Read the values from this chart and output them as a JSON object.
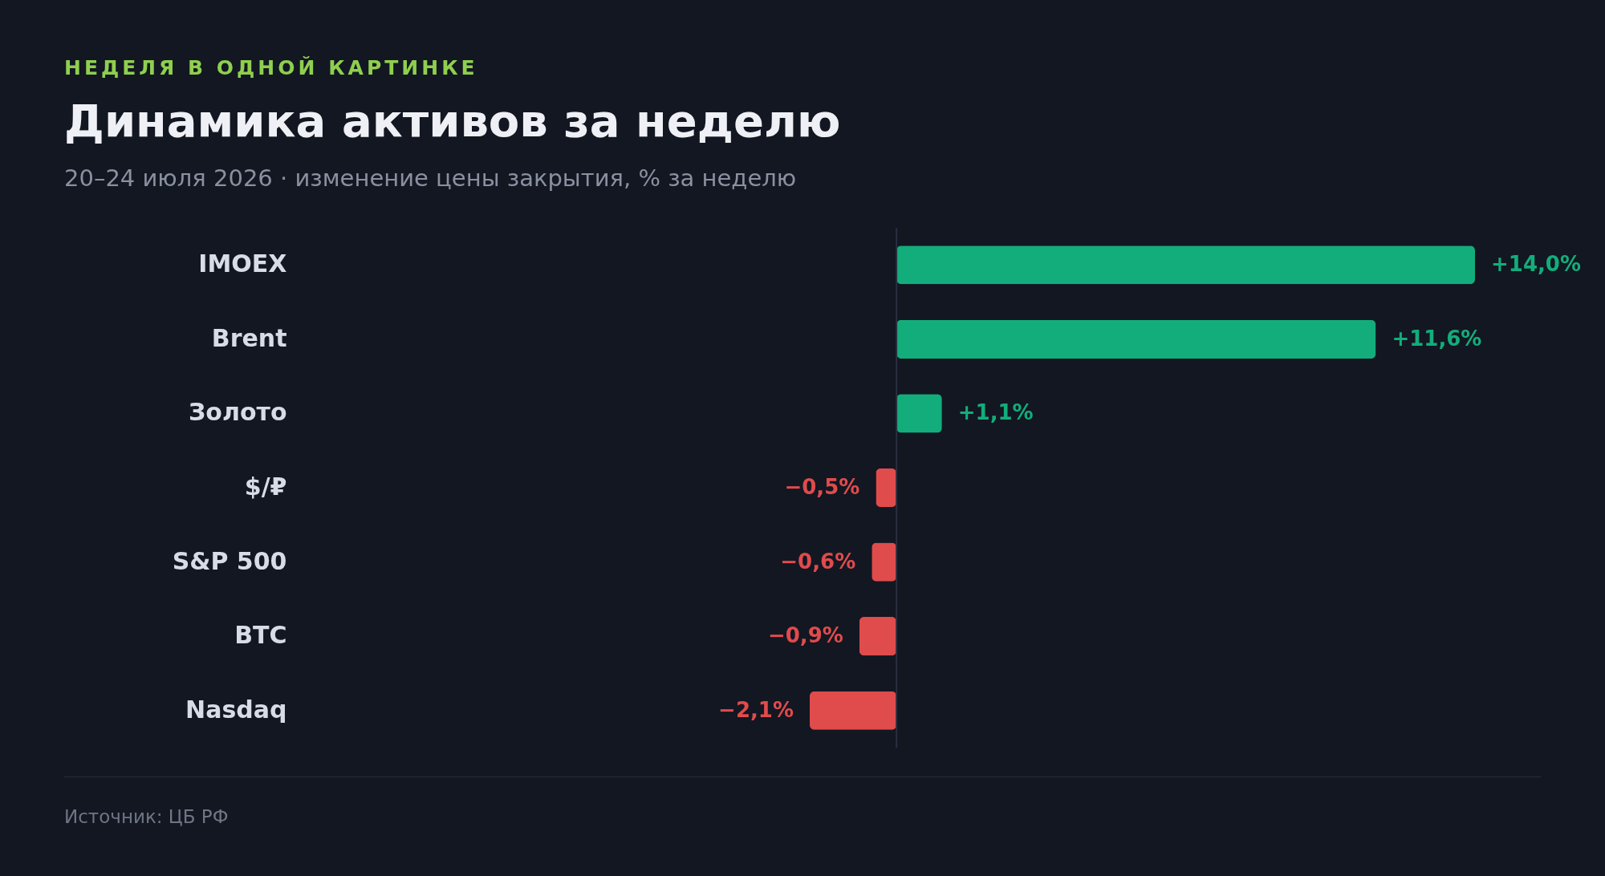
{
  "chart_data": {
    "type": "bar",
    "orientation": "horizontal",
    "title": "Динамика активов за неделю",
    "subtitle": "20–24 июля 2026 · изменение цены закрытия, % за неделю",
    "categories": [
      "IMOEX",
      "Brent",
      "Золото",
      "$/₽",
      "S&P 500",
      "BTC",
      "Nasdaq"
    ],
    "values": [
      14.0,
      11.6,
      1.1,
      -0.5,
      -0.6,
      -0.9,
      -2.1
    ],
    "colors": [
      "#13ad7b",
      "#13ad7b",
      "#13ad7b",
      "#e04b4b",
      "#e04b4b",
      "#e04b4b",
      "#e04b4b"
    ],
    "value_labels": [
      "+14,0%",
      "+11,6%",
      "+1,1%",
      "−0,5%",
      "−0,6%",
      "−0,9%",
      "−2,1%"
    ],
    "ref_lines": [
      {
        "axis": "x",
        "value": 0,
        "color": "#2a3040"
      }
    ],
    "annotations": [
      "НЕДЕЛЯ В ОДНОЙ КАРТИНКЕ",
      "Источник: ЦБ РФ"
    ]
  }
}
